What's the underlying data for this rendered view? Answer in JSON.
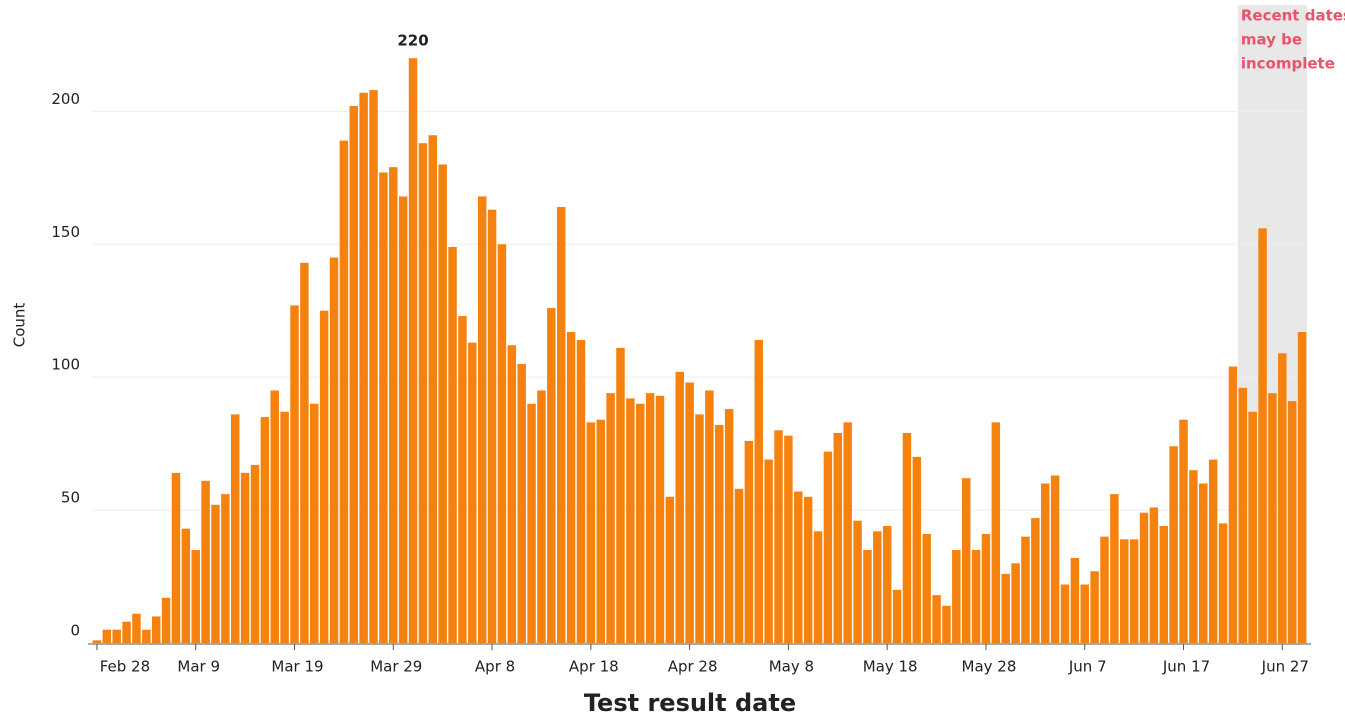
{
  "chart_data": {
    "type": "bar",
    "x_label": "Test result date",
    "y_label": "Count",
    "color": "#f5820f",
    "grid": true,
    "ylim": [
      0,
      240
    ],
    "yticks": [
      0,
      50,
      100,
      150,
      200
    ],
    "highlight": {
      "text": [
        "Recent dates",
        "may be",
        "incomplete"
      ],
      "from_index": 116,
      "color": "#e8e8e8",
      "text_color": "#e8546a"
    },
    "categories": [
      "Feb 28",
      null,
      null,
      null,
      null,
      null,
      null,
      null,
      null,
      null,
      "Mar 9",
      null,
      null,
      null,
      null,
      null,
      null,
      null,
      null,
      null,
      "Mar 19",
      null,
      null,
      null,
      null,
      null,
      null,
      null,
      null,
      null,
      "Mar 29",
      null,
      null,
      null,
      null,
      null,
      null,
      null,
      null,
      null,
      "Apr 8",
      null,
      null,
      null,
      null,
      null,
      null,
      null,
      null,
      null,
      "Apr 18",
      null,
      null,
      null,
      null,
      null,
      null,
      null,
      null,
      null,
      "Apr 28",
      null,
      null,
      null,
      null,
      null,
      null,
      null,
      null,
      null,
      "May 8",
      null,
      null,
      null,
      null,
      null,
      null,
      null,
      null,
      null,
      "May 18",
      null,
      null,
      null,
      null,
      null,
      null,
      null,
      null,
      null,
      "May 28",
      null,
      null,
      null,
      null,
      null,
      null,
      null,
      null,
      null,
      "Jun 7",
      null,
      null,
      null,
      null,
      null,
      null,
      null,
      null,
      null,
      "Jun 17",
      null,
      null,
      null,
      null,
      null,
      null,
      null,
      null,
      null,
      "Jun 27",
      null,
      null
    ],
    "values": [
      1,
      5,
      5,
      8,
      11,
      5,
      10,
      17,
      64,
      43,
      35,
      61,
      52,
      56,
      86,
      64,
      67,
      85,
      95,
      87,
      127,
      143,
      90,
      125,
      145,
      189,
      202,
      207,
      208,
      177,
      179,
      168,
      220,
      188,
      191,
      180,
      149,
      123,
      113,
      168,
      163,
      150,
      112,
      105,
      90,
      95,
      126,
      164,
      117,
      114,
      83,
      84,
      94,
      111,
      92,
      90,
      94,
      93,
      55,
      102,
      98,
      86,
      95,
      82,
      88,
      58,
      76,
      114,
      69,
      80,
      78,
      57,
      55,
      42,
      72,
      79,
      83,
      46,
      35,
      42,
      44,
      20,
      79,
      70,
      41,
      18,
      14,
      35,
      62,
      35,
      41,
      83,
      26,
      30,
      40,
      47,
      60,
      63,
      22,
      32,
      22,
      27,
      40,
      56,
      39,
      39,
      49,
      51,
      44,
      74,
      84,
      65,
      60,
      69,
      45,
      104,
      96,
      87,
      156,
      94,
      109,
      91,
      117
    ]
  }
}
